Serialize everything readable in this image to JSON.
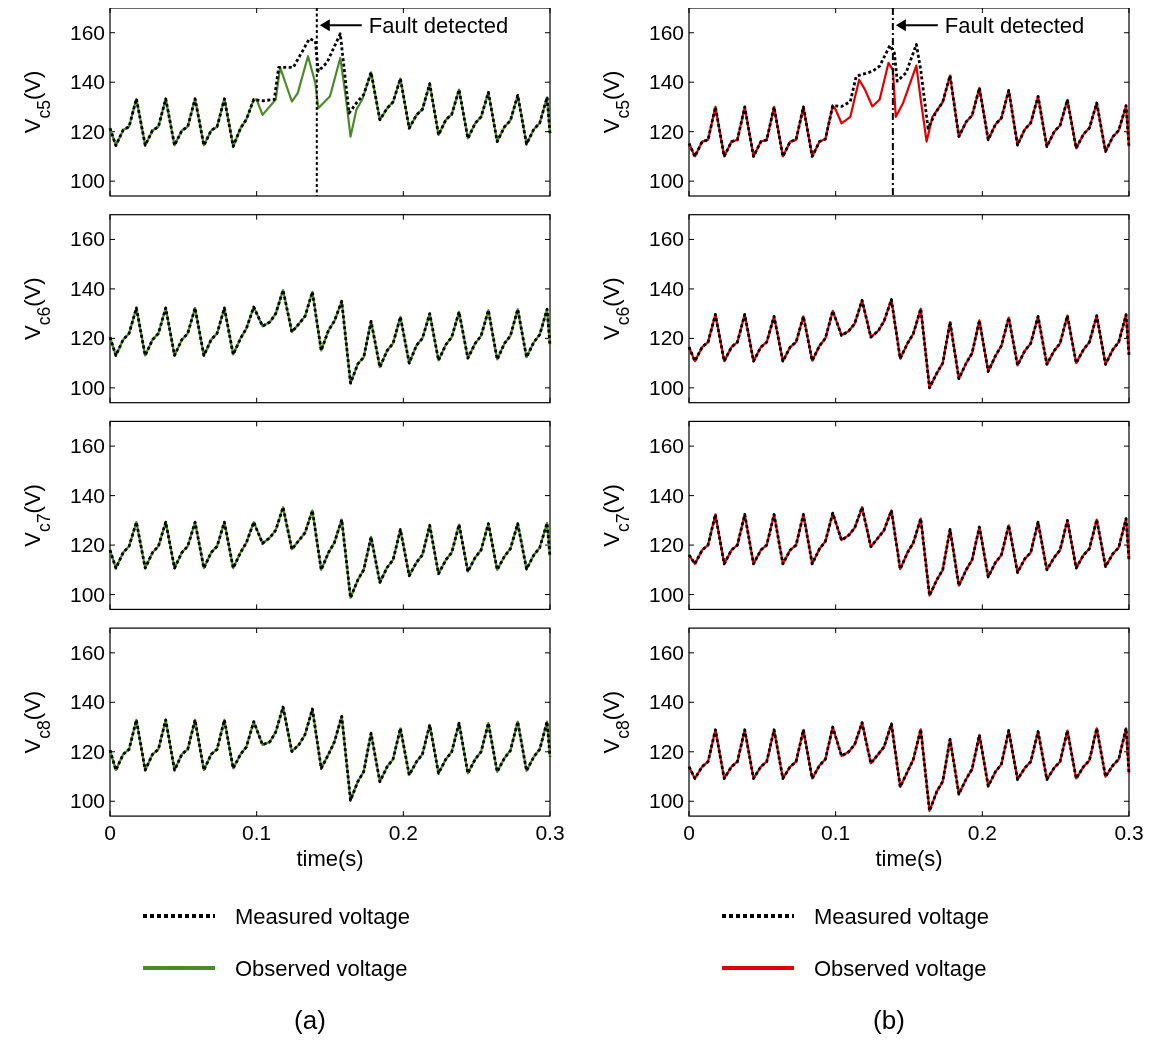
{
  "chart_data": [
    {
      "type": "line",
      "ylabel": "V$_{c5}$(V)",
      "xlim": [
        0,
        0.3
      ],
      "xticks": [
        0,
        0.1,
        0.2,
        0.3
      ],
      "ylim": [
        94,
        170
      ],
      "yticks": [
        100,
        120,
        140,
        160
      ],
      "tick_labels": "y",
      "legend": false,
      "ref_lines": [
        {
          "axis": "x",
          "value": 0.141,
          "color": "#000000",
          "line_style": "dotted"
        }
      ],
      "annotations": [
        {
          "text": "Fault detected",
          "x": 0.141,
          "y": 163
        }
      ],
      "series": [
        {
          "color": "#000000",
          "line_style": "dotted",
          "x": [
            0,
            0.004,
            0.009,
            0.013,
            0.018,
            0.024,
            0.029,
            0.033,
            0.038,
            0.044,
            0.049,
            0.053,
            0.058,
            0.064,
            0.069,
            0.073,
            0.078,
            0.084,
            0.089,
            0.093,
            0.098,
            0.104,
            0.112,
            0.115,
            0.125,
            0.136,
            0.14,
            0.142,
            0.148,
            0.157,
            0.163,
            0.168,
            0.173,
            0.178,
            0.184,
            0.189,
            0.193,
            0.198,
            0.204,
            0.209,
            0.213,
            0.218,
            0.224,
            0.229,
            0.233,
            0.238,
            0.244,
            0.249,
            0.253,
            0.258,
            0.264,
            0.269,
            0.273,
            0.278,
            0.284,
            0.289,
            0.293,
            0.298,
            0.3
          ],
          "values": [
            121.4,
            114.4,
            120.7,
            122,
            133.3,
            114.5,
            120.5,
            122,
            133.3,
            114.5,
            120.5,
            122,
            133.3,
            114.5,
            120.5,
            122,
            133.3,
            114,
            121.4,
            125,
            133,
            132.5,
            133,
            146,
            146,
            157.6,
            156.6,
            144.4,
            148,
            159.6,
            127.5,
            131.6,
            135,
            144,
            124.8,
            129.5,
            132,
            141.5,
            121.4,
            126.8,
            129,
            139.4,
            118.7,
            124.8,
            127,
            137,
            117.3,
            123.4,
            126,
            135.9,
            116,
            122,
            124.5,
            134.7,
            115,
            121,
            123.5,
            133.9,
            119.4
          ]
        },
        {
          "color": "#4a8a2a",
          "line_style": "solid",
          "x": [
            0,
            0.004,
            0.009,
            0.013,
            0.018,
            0.024,
            0.029,
            0.033,
            0.038,
            0.044,
            0.049,
            0.053,
            0.058,
            0.064,
            0.069,
            0.073,
            0.078,
            0.084,
            0.089,
            0.093,
            0.098,
            0.1,
            0.104,
            0.113,
            0.116,
            0.124,
            0.128,
            0.135,
            0.14,
            0.142,
            0.15,
            0.157,
            0.161,
            0.164,
            0.168,
            0.172,
            0.178,
            0.184,
            0.189,
            0.193,
            0.198,
            0.204,
            0.209,
            0.213,
            0.218,
            0.224,
            0.229,
            0.233,
            0.238,
            0.244,
            0.249,
            0.253,
            0.258,
            0.264,
            0.269,
            0.273,
            0.278,
            0.284,
            0.289,
            0.293,
            0.298,
            0.3
          ],
          "values": [
            121.4,
            114.4,
            120.7,
            122,
            133.3,
            114.5,
            120.5,
            122,
            133.3,
            114.5,
            120.5,
            122,
            133.3,
            114.5,
            120.5,
            122,
            133.3,
            114,
            121.4,
            125,
            133,
            133,
            126.8,
            133,
            146,
            132.2,
            135.6,
            150.5,
            139.7,
            129.5,
            134.3,
            149.8,
            133,
            118,
            128.9,
            133,
            144,
            124.8,
            129.5,
            132,
            141.5,
            121.4,
            126.8,
            129,
            139.4,
            118.7,
            124.8,
            127,
            137,
            117.3,
            123.4,
            126,
            135.9,
            116,
            122,
            124.5,
            134.7,
            115,
            121,
            123.5,
            133.9,
            119.4
          ]
        }
      ]
    },
    {
      "type": "line",
      "ylabel": "V$_{c5}$(V)",
      "xlim": [
        0,
        0.3
      ],
      "xticks": [
        0,
        0.1,
        0.2,
        0.3
      ],
      "ylim": [
        94,
        170
      ],
      "yticks": [
        100,
        120,
        140,
        160
      ],
      "tick_labels": "y",
      "legend": false,
      "ref_lines": [
        {
          "axis": "x",
          "value": 0.139,
          "color": "#000000",
          "line_style": "dashed"
        }
      ],
      "annotations": [
        {
          "text": "Fault detected",
          "x": 0.139,
          "y": 163
        }
      ],
      "series": [
        {
          "color": "#000000",
          "line_style": "dotted",
          "x": [
            0,
            0.004,
            0.009,
            0.013,
            0.018,
            0.024,
            0.029,
            0.033,
            0.038,
            0.044,
            0.049,
            0.053,
            0.058,
            0.064,
            0.069,
            0.073,
            0.078,
            0.084,
            0.089,
            0.093,
            0.098,
            0.104,
            0.11,
            0.114,
            0.125,
            0.13,
            0.137,
            0.14,
            0.142,
            0.148,
            0.155,
            0.158,
            0.163,
            0.168,
            0.173,
            0.178,
            0.184,
            0.189,
            0.193,
            0.198,
            0.204,
            0.209,
            0.213,
            0.218,
            0.224,
            0.229,
            0.233,
            0.238,
            0.244,
            0.249,
            0.253,
            0.258,
            0.264,
            0.269,
            0.273,
            0.278,
            0.284,
            0.289,
            0.293,
            0.298,
            0.3
          ],
          "values": [
            115.3,
            110,
            116,
            116.7,
            130,
            110,
            116,
            116.7,
            130,
            110,
            116,
            116.7,
            130,
            110,
            116,
            116.7,
            130,
            110,
            116,
            117,
            130.5,
            130.2,
            132.2,
            142.4,
            144.4,
            146.5,
            154.9,
            151.9,
            140.4,
            143.8,
            155.3,
            145,
            121.4,
            127.5,
            132,
            142.7,
            118,
            124,
            126.5,
            137.7,
            116.7,
            123,
            125.5,
            136.7,
            114.6,
            121,
            123.5,
            134.3,
            114,
            120,
            122.5,
            132.9,
            113.3,
            119,
            121.5,
            131.6,
            112,
            118,
            120.5,
            130.5,
            114
          ]
        },
        {
          "color": "#e00000",
          "line_style": "solid",
          "x": [
            0,
            0.004,
            0.009,
            0.013,
            0.018,
            0.024,
            0.029,
            0.033,
            0.038,
            0.044,
            0.049,
            0.053,
            0.058,
            0.064,
            0.069,
            0.073,
            0.078,
            0.084,
            0.089,
            0.093,
            0.098,
            0.1,
            0.104,
            0.11,
            0.116,
            0.12,
            0.125,
            0.13,
            0.136,
            0.139,
            0.141,
            0.146,
            0.155,
            0.158,
            0.162,
            0.166,
            0.173,
            0.178,
            0.184,
            0.189,
            0.193,
            0.198,
            0.204,
            0.209,
            0.213,
            0.218,
            0.224,
            0.229,
            0.233,
            0.238,
            0.244,
            0.249,
            0.253,
            0.258,
            0.264,
            0.269,
            0.273,
            0.278,
            0.284,
            0.289,
            0.293,
            0.298,
            0.3
          ],
          "values": [
            115.3,
            110,
            116,
            116.7,
            130,
            110,
            116,
            116.7,
            130,
            110,
            116,
            116.7,
            130,
            110,
            116,
            116.7,
            130,
            110,
            116,
            117,
            130.5,
            128.9,
            123.4,
            126,
            141,
            137,
            130.2,
            133,
            147.8,
            145,
            126,
            131.6,
            146.7,
            133,
            116,
            126,
            132,
            142.7,
            118,
            124,
            126.5,
            137.7,
            116.7,
            123,
            125.5,
            136.7,
            114.6,
            121,
            123.5,
            134.3,
            114,
            120,
            122.5,
            132.9,
            113.3,
            119,
            121.5,
            131.6,
            112,
            118,
            120.5,
            130.5,
            114
          ]
        }
      ]
    },
    {
      "type": "line",
      "ylabel": "V$_{c6}$(V)",
      "xlim": [
        0,
        0.3
      ],
      "xticks": [
        0,
        0.1,
        0.2,
        0.3
      ],
      "ylim": [
        94,
        170
      ],
      "yticks": [
        100,
        120,
        140,
        160
      ],
      "tick_labels": "y",
      "legend": false,
      "x": [
        0,
        0.004,
        0.009,
        0.013,
        0.018,
        0.024,
        0.029,
        0.033,
        0.038,
        0.044,
        0.049,
        0.053,
        0.058,
        0.064,
        0.069,
        0.073,
        0.078,
        0.084,
        0.089,
        0.093,
        0.098,
        0.104,
        0.109,
        0.113,
        0.118,
        0.124,
        0.129,
        0.133,
        0.138,
        0.144,
        0.149,
        0.153,
        0.158,
        0.164,
        0.169,
        0.173,
        0.178,
        0.184,
        0.189,
        0.193,
        0.198,
        0.204,
        0.209,
        0.213,
        0.218,
        0.224,
        0.229,
        0.233,
        0.238,
        0.244,
        0.249,
        0.253,
        0.258,
        0.264,
        0.269,
        0.273,
        0.278,
        0.284,
        0.289,
        0.293,
        0.298,
        0.3
      ],
      "series": [
        {
          "color": "#000000",
          "line_style": "dotted",
          "values": [
            120.5,
            113.1,
            119.5,
            122,
            132.3,
            113.1,
            119.5,
            122,
            132.3,
            113.1,
            119.5,
            122,
            132.3,
            113.1,
            119.5,
            122,
            132.3,
            113.5,
            120,
            124,
            132.7,
            124.9,
            126.6,
            130,
            139.5,
            122.6,
            126,
            129,
            138.8,
            115.1,
            123.3,
            127,
            135,
            101.9,
            109.7,
            112.4,
            126.9,
            108.4,
            115.1,
            118,
            128.7,
            110,
            117.2,
            120,
            130,
            111.1,
            117.5,
            120.5,
            130.7,
            112,
            118,
            121,
            131.4,
            111.5,
            118,
            121,
            131.8,
            112.4,
            118.5,
            121.5,
            131.8,
            117.2
          ]
        },
        {
          "color": "#4a8a2a",
          "line_style": "solid",
          "values": [
            120.5,
            113.1,
            119.5,
            122,
            132.3,
            113.1,
            119.5,
            122,
            132.3,
            113.1,
            119.5,
            122,
            132.3,
            113.1,
            119.5,
            122,
            132.3,
            113.5,
            120,
            124,
            132.7,
            124.9,
            126.6,
            130,
            139.5,
            122.6,
            126,
            129,
            138.8,
            115.1,
            123.3,
            127,
            135,
            101.9,
            109.7,
            112.4,
            126.9,
            108.4,
            115.1,
            118,
            128.7,
            110,
            117.2,
            120,
            130,
            111.1,
            117.5,
            120.5,
            130.7,
            112,
            118,
            121,
            131.4,
            111.5,
            118,
            121,
            131.8,
            112.4,
            118.5,
            121.5,
            131.8,
            117.2
          ]
        }
      ]
    },
    {
      "type": "line",
      "ylabel": "V$_{c6}$(V)",
      "xlim": [
        0,
        0.3
      ],
      "xticks": [
        0,
        0.1,
        0.2,
        0.3
      ],
      "ylim": [
        94,
        170
      ],
      "yticks": [
        100,
        120,
        140,
        160
      ],
      "tick_labels": "y",
      "legend": false,
      "x": [
        0,
        0.004,
        0.009,
        0.013,
        0.018,
        0.024,
        0.029,
        0.033,
        0.038,
        0.044,
        0.049,
        0.053,
        0.058,
        0.064,
        0.069,
        0.073,
        0.078,
        0.084,
        0.089,
        0.093,
        0.098,
        0.104,
        0.109,
        0.113,
        0.118,
        0.124,
        0.129,
        0.133,
        0.138,
        0.144,
        0.149,
        0.153,
        0.158,
        0.164,
        0.169,
        0.173,
        0.178,
        0.184,
        0.189,
        0.193,
        0.198,
        0.204,
        0.209,
        0.213,
        0.218,
        0.224,
        0.229,
        0.233,
        0.238,
        0.244,
        0.249,
        0.253,
        0.258,
        0.264,
        0.269,
        0.273,
        0.278,
        0.284,
        0.289,
        0.293,
        0.298,
        0.3
      ],
      "series": [
        {
          "color": "#000000",
          "line_style": "dotted",
          "values": [
            116.5,
            110.8,
            116.5,
            118.5,
            129.7,
            110.8,
            116.5,
            118.5,
            129.7,
            110.8,
            116.5,
            118.5,
            128.9,
            110.8,
            116.5,
            118.5,
            128.9,
            111,
            117,
            120,
            131.1,
            121.2,
            123,
            126,
            135.4,
            120.5,
            123,
            127,
            135.7,
            111.8,
            118,
            122,
            132,
            100,
            106,
            110,
            126.6,
            103.7,
            110,
            114,
            127.3,
            106.6,
            113,
            117,
            128.4,
            109.1,
            115,
            118,
            128.9,
            109.5,
            115,
            118,
            129.2,
            110,
            115.5,
            118.5,
            129.2,
            109.5,
            115.5,
            118.5,
            129.6,
            113.3
          ]
        },
        {
          "color": "#e00000",
          "line_style": "solid",
          "values": [
            116.5,
            110.8,
            116.5,
            118.5,
            129.7,
            110.8,
            116.5,
            118.5,
            129.7,
            110.8,
            116.5,
            118.5,
            128.9,
            110.8,
            116.5,
            118.5,
            128.9,
            111,
            117,
            120,
            131.1,
            121.2,
            123,
            126,
            135.4,
            120.5,
            123,
            127,
            135.7,
            111.8,
            118,
            122,
            132,
            100,
            106,
            110,
            126.6,
            103.7,
            110,
            114,
            127.3,
            106.6,
            113,
            117,
            128.4,
            109.1,
            115,
            118,
            128.9,
            109.5,
            115,
            118,
            129.2,
            110,
            115.5,
            118.5,
            129.2,
            109.5,
            115.5,
            118.5,
            129.6,
            113.3
          ]
        }
      ]
    },
    {
      "type": "line",
      "ylabel": "V$_{c7}$(V)",
      "xlim": [
        0,
        0.3
      ],
      "xticks": [
        0,
        0.1,
        0.2,
        0.3
      ],
      "ylim": [
        94,
        170
      ],
      "yticks": [
        100,
        120,
        140,
        160
      ],
      "tick_labels": "y",
      "legend": false,
      "x": [
        0,
        0.004,
        0.009,
        0.013,
        0.018,
        0.024,
        0.029,
        0.033,
        0.038,
        0.044,
        0.049,
        0.053,
        0.058,
        0.064,
        0.069,
        0.073,
        0.078,
        0.084,
        0.089,
        0.093,
        0.098,
        0.104,
        0.109,
        0.113,
        0.118,
        0.124,
        0.129,
        0.133,
        0.138,
        0.144,
        0.149,
        0.153,
        0.158,
        0.164,
        0.169,
        0.173,
        0.178,
        0.184,
        0.189,
        0.193,
        0.198,
        0.204,
        0.209,
        0.213,
        0.218,
        0.224,
        0.229,
        0.233,
        0.238,
        0.244,
        0.249,
        0.253,
        0.258,
        0.264,
        0.269,
        0.273,
        0.278,
        0.284,
        0.289,
        0.293,
        0.298,
        0.3
      ],
      "series": [
        {
          "color": "#000000",
          "line_style": "dotted",
          "values": [
            118,
            110.7,
            117,
            119.5,
            129.3,
            110.7,
            117,
            119.5,
            129.3,
            110.7,
            117,
            119.5,
            129.3,
            110.7,
            117,
            119.5,
            129.3,
            110.7,
            117,
            121,
            129.3,
            120.7,
            123,
            126,
            135.3,
            118.3,
            122,
            125,
            134,
            110,
            117,
            121,
            130.3,
            98.7,
            106,
            110,
            123.3,
            104.9,
            111,
            114,
            126.3,
            107.6,
            113,
            116,
            128,
            108.4,
            114,
            117,
            128.3,
            109.3,
            115,
            118,
            128.7,
            110,
            115.5,
            118.5,
            128.7,
            110.3,
            116,
            119,
            128.9,
            115.3
          ]
        },
        {
          "color": "#4a8a2a",
          "line_style": "solid",
          "values": [
            118,
            110.7,
            117,
            119.5,
            129.3,
            110.7,
            117,
            119.5,
            129.3,
            110.7,
            117,
            119.5,
            129.3,
            110.7,
            117,
            119.5,
            129.3,
            110.7,
            117,
            121,
            129.3,
            120.7,
            123,
            126,
            135.3,
            118.3,
            122,
            125,
            134,
            110,
            117,
            121,
            130.3,
            98.7,
            106,
            110,
            123.3,
            104.9,
            111,
            114,
            126.3,
            107.6,
            113,
            116,
            128,
            108.4,
            114,
            117,
            128.3,
            109.3,
            115,
            118,
            128.7,
            110,
            115.5,
            118.5,
            128.7,
            110.3,
            116,
            119,
            128.9,
            115.3
          ]
        }
      ]
    },
    {
      "type": "line",
      "ylabel": "V$_{c7}$(V)",
      "xlim": [
        0,
        0.3
      ],
      "xticks": [
        0,
        0.1,
        0.2,
        0.3
      ],
      "ylim": [
        94,
        170
      ],
      "yticks": [
        100,
        120,
        140,
        160
      ],
      "tick_labels": "y",
      "legend": false,
      "x": [
        0,
        0.004,
        0.009,
        0.013,
        0.018,
        0.024,
        0.029,
        0.033,
        0.038,
        0.044,
        0.049,
        0.053,
        0.058,
        0.064,
        0.069,
        0.073,
        0.078,
        0.084,
        0.089,
        0.093,
        0.098,
        0.104,
        0.109,
        0.113,
        0.118,
        0.124,
        0.129,
        0.133,
        0.138,
        0.144,
        0.149,
        0.153,
        0.158,
        0.164,
        0.169,
        0.173,
        0.178,
        0.184,
        0.189,
        0.193,
        0.198,
        0.204,
        0.209,
        0.213,
        0.218,
        0.224,
        0.229,
        0.233,
        0.238,
        0.244,
        0.249,
        0.253,
        0.258,
        0.264,
        0.269,
        0.273,
        0.278,
        0.284,
        0.289,
        0.293,
        0.298,
        0.3
      ],
      "series": [
        {
          "color": "#000000",
          "line_style": "dotted",
          "values": [
            116,
            112.4,
            118,
            120,
            132.4,
            112.4,
            118,
            120,
            132.4,
            112.4,
            118,
            120,
            132.4,
            112.4,
            118,
            120,
            132.4,
            112.4,
            118.5,
            121.5,
            132.9,
            122,
            124,
            127,
            135.3,
            119.3,
            123,
            126,
            134,
            110.3,
            117,
            121,
            130.7,
            99.6,
            106,
            110,
            126.3,
            103.6,
            110,
            114,
            127.3,
            107.1,
            113,
            116,
            128,
            108.9,
            114.5,
            117,
            129.3,
            110,
            115,
            118,
            130,
            110.7,
            116,
            118.5,
            130.3,
            111.3,
            116.5,
            119,
            130.7,
            114
          ]
        },
        {
          "color": "#e00000",
          "line_style": "solid",
          "values": [
            116,
            112.4,
            118,
            120,
            132.4,
            112.4,
            118,
            120,
            132.4,
            112.4,
            118,
            120,
            132.4,
            112.4,
            118,
            120,
            132.4,
            112.4,
            118.5,
            121.5,
            132.9,
            122,
            124,
            127,
            135.3,
            119.3,
            123,
            126,
            134,
            110.3,
            117,
            121,
            130.7,
            99.6,
            106,
            110,
            126.3,
            103.6,
            110,
            114,
            127.3,
            107.1,
            113,
            116,
            128,
            108.9,
            114.5,
            117,
            129.3,
            110,
            115,
            118,
            130,
            110.7,
            116,
            118.5,
            130.3,
            111.3,
            116.5,
            119,
            130.7,
            114
          ]
        }
      ]
    },
    {
      "type": "line",
      "ylabel": "V$_{c8}$(V)",
      "xlabel": "time(s)",
      "xlim": [
        0,
        0.3
      ],
      "xticks": [
        0,
        0.1,
        0.2,
        0.3
      ],
      "ylim": [
        94,
        170
      ],
      "yticks": [
        100,
        120,
        140,
        160
      ],
      "legend": "bottom",
      "annotations": [
        "(a)"
      ],
      "x": [
        0,
        0.004,
        0.009,
        0.013,
        0.018,
        0.024,
        0.029,
        0.033,
        0.038,
        0.044,
        0.049,
        0.053,
        0.058,
        0.064,
        0.069,
        0.073,
        0.078,
        0.084,
        0.089,
        0.093,
        0.098,
        0.104,
        0.109,
        0.113,
        0.118,
        0.124,
        0.129,
        0.133,
        0.138,
        0.144,
        0.149,
        0.153,
        0.158,
        0.164,
        0.169,
        0.173,
        0.178,
        0.184,
        0.189,
        0.193,
        0.198,
        0.204,
        0.209,
        0.213,
        0.218,
        0.224,
        0.229,
        0.233,
        0.238,
        0.244,
        0.249,
        0.253,
        0.258,
        0.264,
        0.269,
        0.273,
        0.278,
        0.284,
        0.289,
        0.293,
        0.298,
        0.3
      ],
      "series": [
        {
          "name": "Measured voltage",
          "color": "#000000",
          "line_style": "dotted",
          "values": [
            120.7,
            112.6,
            119,
            121,
            132.9,
            112.6,
            119,
            121,
            132.9,
            112.6,
            119,
            121,
            132.9,
            112.6,
            119,
            121,
            132.9,
            113.3,
            119,
            122,
            132.2,
            122.8,
            124,
            128,
            138.1,
            120.1,
            123,
            127,
            137.3,
            113.3,
            119,
            124,
            134.3,
            100.4,
            108,
            112,
            127.5,
            107.9,
            114,
            117,
            129.5,
            110.6,
            116,
            119,
            130.9,
            111.3,
            117,
            120,
            131.6,
            111.3,
            117,
            120,
            131.6,
            111.9,
            117.5,
            120.5,
            132.2,
            112.3,
            118,
            121,
            132.2,
            118
          ]
        },
        {
          "name": "Observed voltage",
          "color": "#4a8a2a",
          "line_style": "solid",
          "values": [
            120.7,
            112.6,
            119,
            121,
            132.9,
            112.6,
            119,
            121,
            132.9,
            112.6,
            119,
            121,
            132.9,
            112.6,
            119,
            121,
            132.9,
            113.3,
            119,
            122,
            132.2,
            122.8,
            124,
            128,
            138.1,
            120.1,
            123,
            127,
            137.3,
            113.3,
            119,
            124,
            134.3,
            100.4,
            108,
            112,
            127.5,
            107.9,
            114,
            117,
            129.5,
            110.6,
            116,
            119,
            130.9,
            111.3,
            117,
            120,
            131.6,
            111.3,
            117,
            120,
            131.6,
            111.9,
            117.5,
            120.5,
            132.2,
            112.3,
            118,
            121,
            132.2,
            118
          ]
        }
      ]
    },
    {
      "type": "line",
      "ylabel": "V$_{c8}$(V)",
      "xlabel": "time(s)",
      "xlim": [
        0,
        0.3
      ],
      "xticks": [
        0,
        0.1,
        0.2,
        0.3
      ],
      "ylim": [
        94,
        170
      ],
      "yticks": [
        100,
        120,
        140,
        160
      ],
      "legend": "bottom",
      "annotations": [
        "(b)"
      ],
      "x": [
        0,
        0.004,
        0.009,
        0.013,
        0.018,
        0.024,
        0.029,
        0.033,
        0.038,
        0.044,
        0.049,
        0.053,
        0.058,
        0.064,
        0.069,
        0.073,
        0.078,
        0.084,
        0.089,
        0.093,
        0.098,
        0.104,
        0.109,
        0.113,
        0.118,
        0.124,
        0.129,
        0.133,
        0.138,
        0.144,
        0.149,
        0.153,
        0.158,
        0.164,
        0.169,
        0.173,
        0.178,
        0.184,
        0.189,
        0.193,
        0.198,
        0.204,
        0.209,
        0.213,
        0.218,
        0.224,
        0.229,
        0.233,
        0.238,
        0.244,
        0.249,
        0.253,
        0.258,
        0.264,
        0.269,
        0.273,
        0.278,
        0.284,
        0.289,
        0.293,
        0.298,
        0.3
      ],
      "series": [
        {
          "name": "Measured voltage",
          "color": "#000000",
          "line_style": "dotted",
          "values": [
            114,
            109.2,
            114,
            116,
            128.9,
            109.2,
            114,
            116,
            128.9,
            109.2,
            114,
            116,
            128.9,
            109.2,
            114,
            116,
            128.9,
            109.2,
            114.5,
            117,
            130,
            118.3,
            120,
            123,
            131.8,
            115.3,
            119,
            122,
            131.3,
            105.8,
            112,
            117,
            129.1,
            96.1,
            104,
            108,
            125.1,
            102.9,
            109,
            113,
            126.8,
            106.1,
            112,
            115,
            128.6,
            108.8,
            113.5,
            116,
            128.2,
            108.8,
            113.5,
            116,
            128.6,
            109.2,
            114,
            116.5,
            129.5,
            109.9,
            114.5,
            117,
            129.5,
            111.3
          ]
        },
        {
          "name": "Observed voltage",
          "color": "#e00000",
          "line_style": "solid",
          "values": [
            114,
            109.2,
            114,
            116,
            128.9,
            109.2,
            114,
            116,
            128.9,
            109.2,
            114,
            116,
            128.9,
            109.2,
            114,
            116,
            128.9,
            109.2,
            114.5,
            117,
            130,
            118.3,
            120,
            123,
            131.8,
            115.3,
            119,
            122,
            131.3,
            105.8,
            112,
            117,
            129.1,
            96.1,
            104,
            108,
            125.1,
            102.9,
            109,
            113,
            126.8,
            106.1,
            112,
            115,
            128.6,
            108.8,
            113.5,
            116,
            128.2,
            108.8,
            113.5,
            116,
            128.6,
            109.2,
            114,
            116.5,
            129.5,
            109.9,
            114.5,
            117,
            129.5,
            111.3
          ]
        }
      ]
    }
  ]
}
